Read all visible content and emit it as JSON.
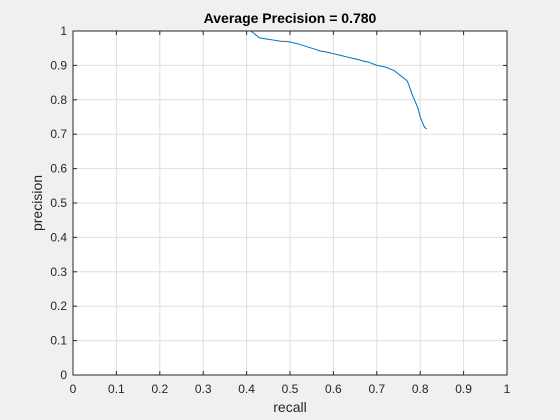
{
  "chart_data": {
    "type": "line",
    "title": "Average Precision = 0.780",
    "xlabel": "recall",
    "ylabel": "precision",
    "xlim": [
      0,
      1
    ],
    "ylim": [
      0,
      1
    ],
    "xticks": [
      0,
      0.1,
      0.2,
      0.3,
      0.4,
      0.5,
      0.6,
      0.7,
      0.8,
      0.9,
      1
    ],
    "xtick_labels": [
      "0",
      "0.1",
      "0.2",
      "0.3",
      "0.4",
      "0.5",
      "0.6",
      "0.7",
      "0.8",
      "0.9",
      "1"
    ],
    "yticks": [
      0,
      0.1,
      0.2,
      0.3,
      0.4,
      0.5,
      0.6,
      0.7,
      0.8,
      0.9,
      1
    ],
    "ytick_labels": [
      "0",
      "0.1",
      "0.2",
      "0.3",
      "0.4",
      "0.5",
      "0.6",
      "0.7",
      "0.8",
      "0.9",
      "1"
    ],
    "grid": true,
    "line_color": "#0072bd",
    "series": [
      {
        "x": [
          0.0,
          0.1,
          0.2,
          0.3,
          0.4,
          0.41,
          0.415,
          0.42,
          0.425,
          0.43,
          0.44,
          0.45,
          0.46,
          0.47,
          0.48,
          0.49,
          0.5,
          0.51,
          0.52,
          0.53,
          0.54,
          0.55,
          0.56,
          0.57,
          0.58,
          0.59,
          0.6,
          0.61,
          0.62,
          0.63,
          0.64,
          0.65,
          0.66,
          0.67,
          0.68,
          0.69,
          0.7,
          0.71,
          0.72,
          0.73,
          0.74,
          0.75,
          0.76,
          0.77,
          0.775,
          0.78,
          0.785,
          0.79,
          0.795,
          0.8,
          0.805,
          0.81,
          0.815
        ],
        "y": [
          1.0,
          1.0,
          1.0,
          1.0,
          1.0,
          1.0,
          0.995,
          0.99,
          0.985,
          0.98,
          0.978,
          0.976,
          0.974,
          0.972,
          0.97,
          0.97,
          0.968,
          0.965,
          0.962,
          0.958,
          0.954,
          0.95,
          0.946,
          0.942,
          0.94,
          0.937,
          0.934,
          0.931,
          0.928,
          0.925,
          0.922,
          0.919,
          0.916,
          0.912,
          0.91,
          0.905,
          0.9,
          0.898,
          0.895,
          0.89,
          0.885,
          0.875,
          0.865,
          0.855,
          0.84,
          0.82,
          0.805,
          0.79,
          0.775,
          0.75,
          0.735,
          0.72,
          0.715
        ]
      }
    ]
  }
}
